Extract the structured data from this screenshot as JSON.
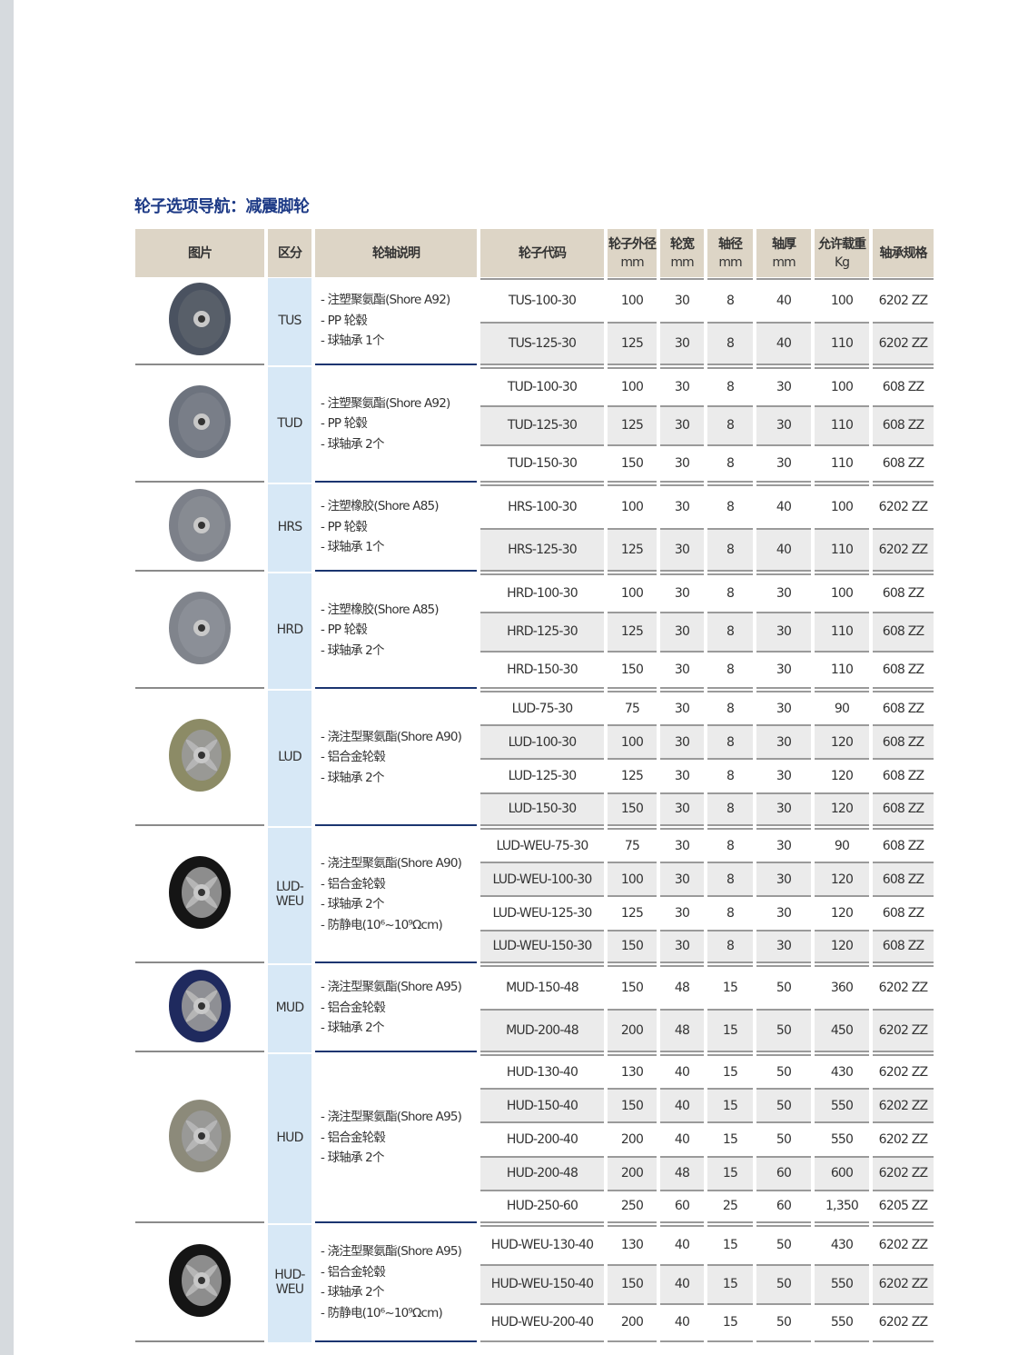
{
  "title": "轮子选项导航：减震脚轮",
  "headers": [
    "图片",
    "区分",
    "轮轴说明",
    "轮子代码",
    "轮子外径\nmm",
    "轮宽\nmm",
    "轴径\nmm",
    "轴厚\nmm",
    "允许载重\nKg",
    "轴承规格"
  ],
  "groups": [
    {
      "category": "TUS",
      "wheel_color": "#4a5260",
      "hub_color": "#5a606a",
      "description": [
        "- 注塑聚氨酯(Shore A92)",
        "- PP 轮毂",
        "- 球轴承 1个"
      ],
      "rows": [
        [
          "TUS-100-30",
          "100",
          "30",
          "8",
          "40",
          "100",
          "6202 ZZ"
        ],
        [
          "TUS-125-30",
          "125",
          "30",
          "8",
          "40",
          "110",
          "6202 ZZ"
        ]
      ]
    },
    {
      "category": "TUD",
      "wheel_color": "#6d737e",
      "hub_color": "#7a808a",
      "description": [
        "- 注塑聚氨酯(Shore A92)",
        "- PP 轮毂",
        "- 球轴承 2个"
      ],
      "rows": [
        [
          "TUD-100-30",
          "100",
          "30",
          "8",
          "30",
          "100",
          "608 ZZ"
        ],
        [
          "TUD-125-30",
          "125",
          "30",
          "8",
          "30",
          "110",
          "608 ZZ"
        ],
        [
          "TUD-150-30",
          "150",
          "30",
          "8",
          "30",
          "110",
          "608 ZZ"
        ]
      ]
    },
    {
      "category": "HRS",
      "wheel_color": "#7c8089",
      "hub_color": "#888c94",
      "description": [
        "- 注塑橡胶(Shore A85)",
        "- PP 轮毂",
        "- 球轴承 1个"
      ],
      "rows": [
        [
          "HRS-100-30",
          "100",
          "30",
          "8",
          "40",
          "100",
          "6202 ZZ"
        ],
        [
          "HRS-125-30",
          "125",
          "30",
          "8",
          "40",
          "110",
          "6202 ZZ"
        ]
      ]
    },
    {
      "category": "HRD",
      "wheel_color": "#80848c",
      "hub_color": "#8c9098",
      "description": [
        "- 注塑橡胶(Shore A85)",
        "- PP 轮毂",
        "- 球轴承 2个"
      ],
      "rows": [
        [
          "HRD-100-30",
          "100",
          "30",
          "8",
          "30",
          "100",
          "608 ZZ"
        ],
        [
          "HRD-125-30",
          "125",
          "30",
          "8",
          "30",
          "110",
          "608 ZZ"
        ],
        [
          "HRD-150-30",
          "150",
          "30",
          "8",
          "30",
          "110",
          "608 ZZ"
        ]
      ]
    },
    {
      "category": "LUD",
      "wheel_color": "#8c8b66",
      "hub_color": "#9a9a9a",
      "description": [
        "- 浇注型聚氨酯(Shore A90)",
        "- 铝合金轮毂",
        "- 球轴承 2个"
      ],
      "rows": [
        [
          "LUD-75-30",
          "75",
          "30",
          "8",
          "30",
          "90",
          "608 ZZ"
        ],
        [
          "LUD-100-30",
          "100",
          "30",
          "8",
          "30",
          "120",
          "608 ZZ"
        ],
        [
          "LUD-125-30",
          "125",
          "30",
          "8",
          "30",
          "120",
          "608 ZZ"
        ],
        [
          "LUD-150-30",
          "150",
          "30",
          "8",
          "30",
          "120",
          "608 ZZ"
        ]
      ]
    },
    {
      "category": "LUD-\nWEU",
      "wheel_color": "#151515",
      "hub_color": "#9a9a9a",
      "description": [
        "- 浇注型聚氨酯(Shore A90)",
        "- 铝合金轮毂",
        "- 球轴承 2个",
        "- 防静电(10⁶~10⁹Ωcm)"
      ],
      "rows": [
        [
          "LUD-WEU-75-30",
          "75",
          "30",
          "8",
          "30",
          "90",
          "608 ZZ"
        ],
        [
          "LUD-WEU-100-30",
          "100",
          "30",
          "8",
          "30",
          "120",
          "608 ZZ"
        ],
        [
          "LUD-WEU-125-30",
          "125",
          "30",
          "8",
          "30",
          "120",
          "608 ZZ"
        ],
        [
          "LUD-WEU-150-30",
          "150",
          "30",
          "8",
          "30",
          "120",
          "608 ZZ"
        ]
      ]
    },
    {
      "category": "MUD",
      "wheel_color": "#1f2a5e",
      "hub_color": "#9a9a9a",
      "description": [
        "- 浇注型聚氨酯(Shore A95)",
        "- 铝合金轮毂",
        "- 球轴承 2个"
      ],
      "rows": [
        [
          "MUD-150-48",
          "150",
          "48",
          "15",
          "50",
          "360",
          "6202 ZZ"
        ],
        [
          "MUD-200-48",
          "200",
          "48",
          "15",
          "50",
          "450",
          "6202 ZZ"
        ]
      ]
    },
    {
      "category": "HUD",
      "wheel_color": "#8c8a7a",
      "hub_color": "#9a9a9a",
      "description": [
        "- 浇注型聚氨酯(Shore A95)",
        "- 铝合金轮毂",
        "- 球轴承 2个"
      ],
      "rows": [
        [
          "HUD-130-40",
          "130",
          "40",
          "15",
          "50",
          "430",
          "6202 ZZ"
        ],
        [
          "HUD-150-40",
          "150",
          "40",
          "15",
          "50",
          "550",
          "6202 ZZ"
        ],
        [
          "HUD-200-40",
          "200",
          "40",
          "15",
          "50",
          "550",
          "6202 ZZ"
        ],
        [
          "HUD-200-48",
          "200",
          "48",
          "15",
          "60",
          "600",
          "6202 ZZ"
        ],
        [
          "HUD-250-60",
          "250",
          "60",
          "25",
          "60",
          "1,350",
          "6205 ZZ"
        ]
      ]
    },
    {
      "category": "HUD-\nWEU",
      "wheel_color": "#151515",
      "hub_color": "#9a9a9a",
      "description": [
        "- 浇注型聚氨酯(Shore A95)",
        "- 铝合金轮毂",
        "- 球轴承 2个",
        "- 防静电(10⁶~10⁹Ωcm)"
      ],
      "rows": [
        [
          "HUD-WEU-130-40",
          "130",
          "40",
          "15",
          "50",
          "430",
          "6202 ZZ"
        ],
        [
          "HUD-WEU-150-40",
          "150",
          "40",
          "15",
          "50",
          "550",
          "6202 ZZ"
        ],
        [
          "HUD-WEU-200-40",
          "200",
          "40",
          "15",
          "50",
          "550",
          "6202 ZZ"
        ]
      ]
    }
  ]
}
